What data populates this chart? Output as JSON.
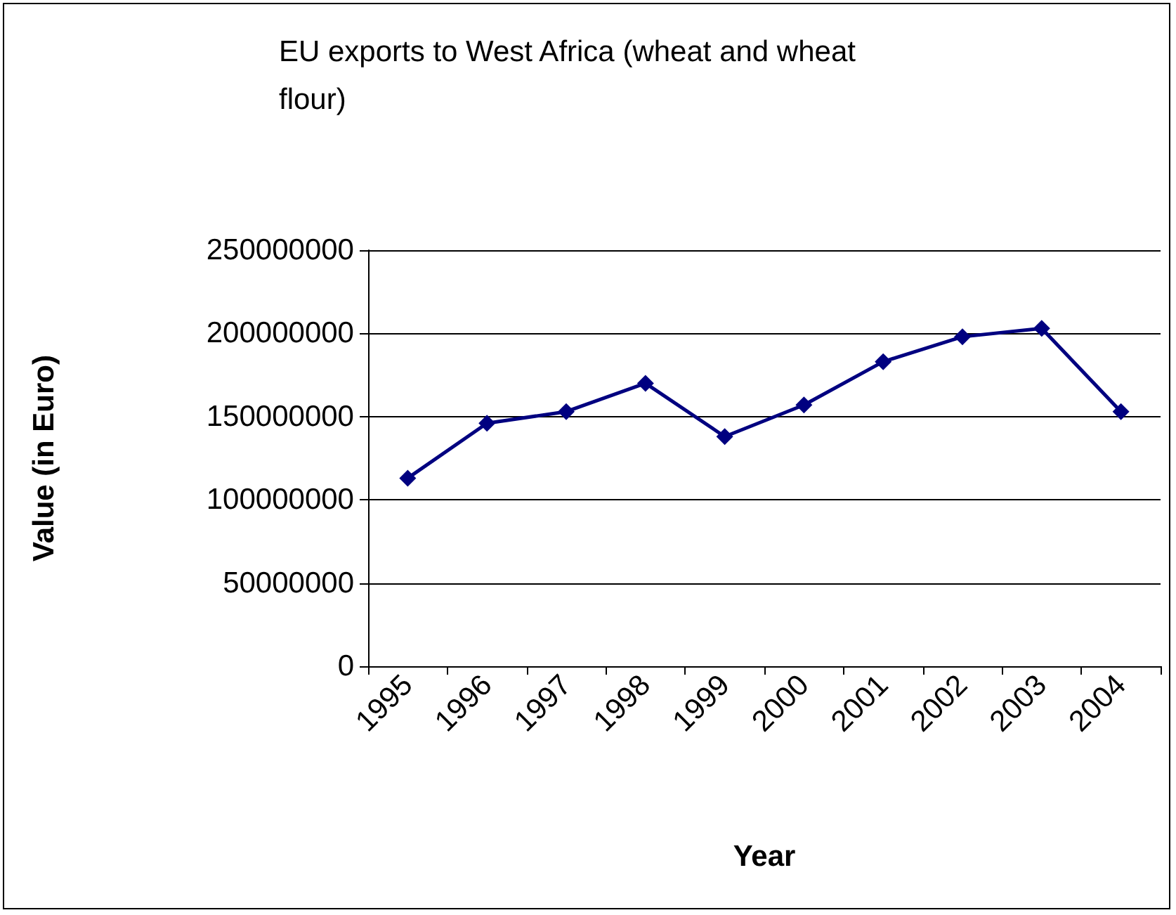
{
  "chart_data": {
    "type": "line",
    "title": "EU exports to West Africa (wheat and wheat flour)",
    "xlabel": "Year",
    "ylabel": "Value (in Euro)",
    "categories": [
      "1995",
      "1996",
      "1997",
      "1998",
      "1999",
      "2000",
      "2001",
      "2002",
      "2003",
      "2004"
    ],
    "series": [
      {
        "color": "#000080",
        "values": [
          113000000,
          146000000,
          153000000,
          170000000,
          138000000,
          157000000,
          183000000,
          198000000,
          203000000,
          153000000
        ]
      }
    ],
    "ylim": [
      0,
      250000000
    ],
    "yticks": [
      0,
      50000000,
      100000000,
      150000000,
      200000000,
      250000000
    ],
    "grid": "y",
    "marker": "diamond",
    "line_style": "solid"
  }
}
